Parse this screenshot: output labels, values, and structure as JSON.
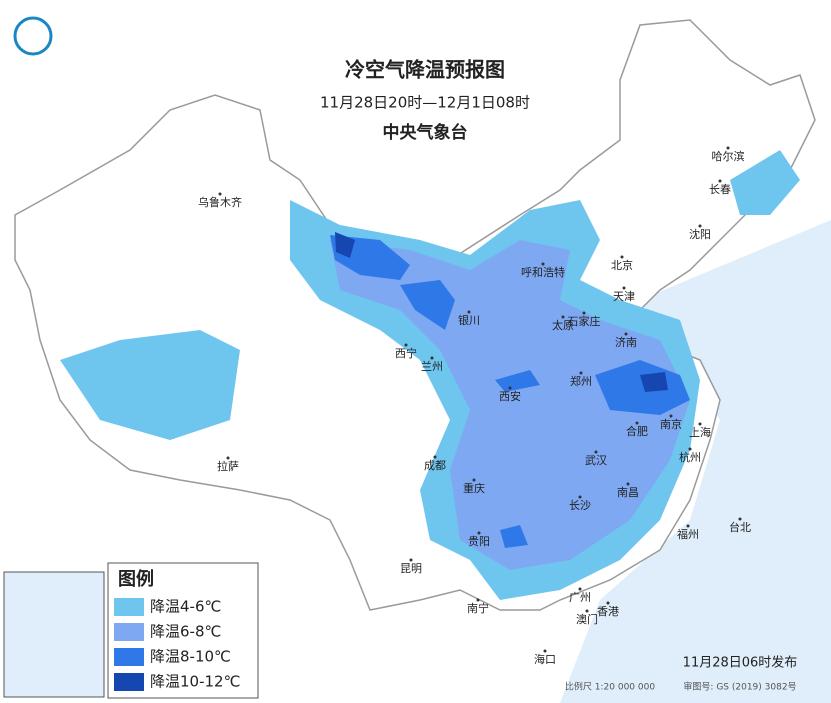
{
  "header": {
    "title": "冷空气降温预报图",
    "period": "11月28日20时—12月1日08时",
    "issuer": "中央气象台"
  },
  "cities": [
    "乌鲁木齐",
    "呼和浩特",
    "北京",
    "天津",
    "哈尔滨",
    "长春",
    "沈阳",
    "银川",
    "太原",
    "石家庄",
    "济南",
    "西宁",
    "兰州",
    "郑州",
    "西安",
    "合肥",
    "南京",
    "上海",
    "拉萨",
    "成都",
    "武汉",
    "杭州",
    "重庆",
    "长沙",
    "南昌",
    "福州",
    "台北",
    "贵阳",
    "昆明",
    "南宁",
    "广州",
    "香港",
    "澳门",
    "海口"
  ],
  "legend": {
    "title": "图例",
    "items": [
      {
        "label": "降温4-6℃",
        "color": "#6ec6ef"
      },
      {
        "label": "降温6-8℃",
        "color": "#7fa8f2"
      },
      {
        "label": "降温8-10℃",
        "color": "#2f78e8"
      },
      {
        "label": "降温10-12℃",
        "color": "#1646b0"
      }
    ]
  },
  "footer": {
    "issued": "11月28日06时发布",
    "scale": "比例尺 1:20 000 000",
    "review": "审图号: GS (2019) 3082号"
  }
}
